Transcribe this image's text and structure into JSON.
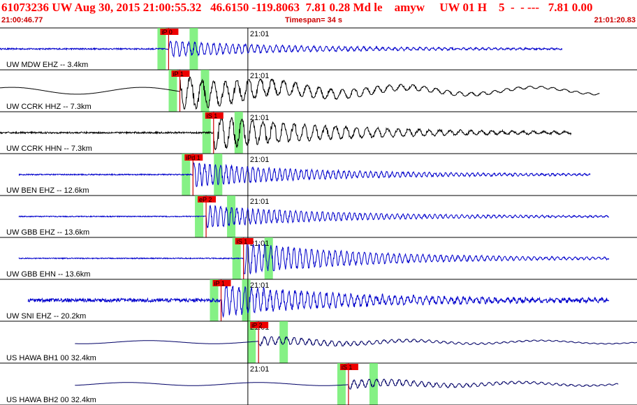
{
  "header": {
    "event_line": "61073236 UW Aug 30, 2015 21:00:55.32   46.6150 -119.8063  7.81 0.28 Md le    amyw     UW 01 H    5  -  - ---   7.81 0.00",
    "start_time": "21:00:46.77",
    "timespan": "Timespan=  34 s",
    "end_time": "21:01:20.83"
  },
  "minute_label": "21:01",
  "channels": [
    {
      "label": "UW MDW EHZ -- 3.4km",
      "color": "#0000cc",
      "pick": "iP 0",
      "pick_t": 9.0,
      "start": 0.0,
      "end": 30.0,
      "amp": 0.35,
      "freq": 3.0,
      "bg": 0.07,
      "tail": 0.15
    },
    {
      "label": "UW CCRK HHZ -- 7.3km",
      "color": "#000000",
      "pick": "iP 1",
      "pick_t": 9.6,
      "start": 0.0,
      "end": 32.0,
      "amp": 0.8,
      "freq": 1.6,
      "bg": 0.22,
      "tail": 0.25,
      "lp": true
    },
    {
      "label": "UW CCRK HHN -- 7.3km",
      "color": "#000000",
      "pick": "iS 1",
      "pick_t": 11.4,
      "start": 0.0,
      "end": 30.5,
      "amp": 0.8,
      "freq": 1.8,
      "bg": 0.08,
      "tail": 0.2
    },
    {
      "label": "UW BEN EHZ -- 12.6km",
      "color": "#0000cc",
      "pick": "iPd 1",
      "pick_t": 10.3,
      "start": 1.0,
      "end": 31.5,
      "amp": 0.55,
      "freq": 3.5,
      "bg": 0.06,
      "tail": 0.2
    },
    {
      "label": "UW GBB EHZ -- 13.6km",
      "color": "#0000cc",
      "pick": "eP 2",
      "pick_t": 11.0,
      "start": 1.0,
      "end": 32.5,
      "amp": 0.5,
      "freq": 3.5,
      "bg": 0.05,
      "tail": 0.2
    },
    {
      "label": "UW GBB EHN -- 13.6km",
      "color": "#0000cc",
      "pick": "iS 1",
      "pick_t": 13.0,
      "start": 1.0,
      "end": 32.5,
      "amp": 0.75,
      "freq": 3.2,
      "bg": 0.05,
      "tail": 0.2
    },
    {
      "label": "UW SNI EHZ -- 20.2km",
      "color": "#0000cc",
      "pick": "iP 1",
      "pick_t": 11.8,
      "start": 1.5,
      "end": 32.5,
      "amp": 0.7,
      "freq": 3.0,
      "bg": 0.18,
      "tail": 0.3
    },
    {
      "label": "US HAWA BH1 00 32.4km",
      "color": "#000066",
      "pick": "iP 2",
      "pick_t": 13.8,
      "start": 4.0,
      "end": 34.0,
      "amp": 0.2,
      "freq": 2.5,
      "bg": 0.1,
      "tail": 0.1,
      "lp": true
    },
    {
      "label": "US HAWA BH2 00 32.4km",
      "color": "#000066",
      "pick": "iS 1",
      "pick_t": 18.6,
      "start": 4.0,
      "end": 33.0,
      "amp": 0.2,
      "freq": 2.5,
      "bg": 0.1,
      "tail": 0.1,
      "lp": true
    }
  ]
}
